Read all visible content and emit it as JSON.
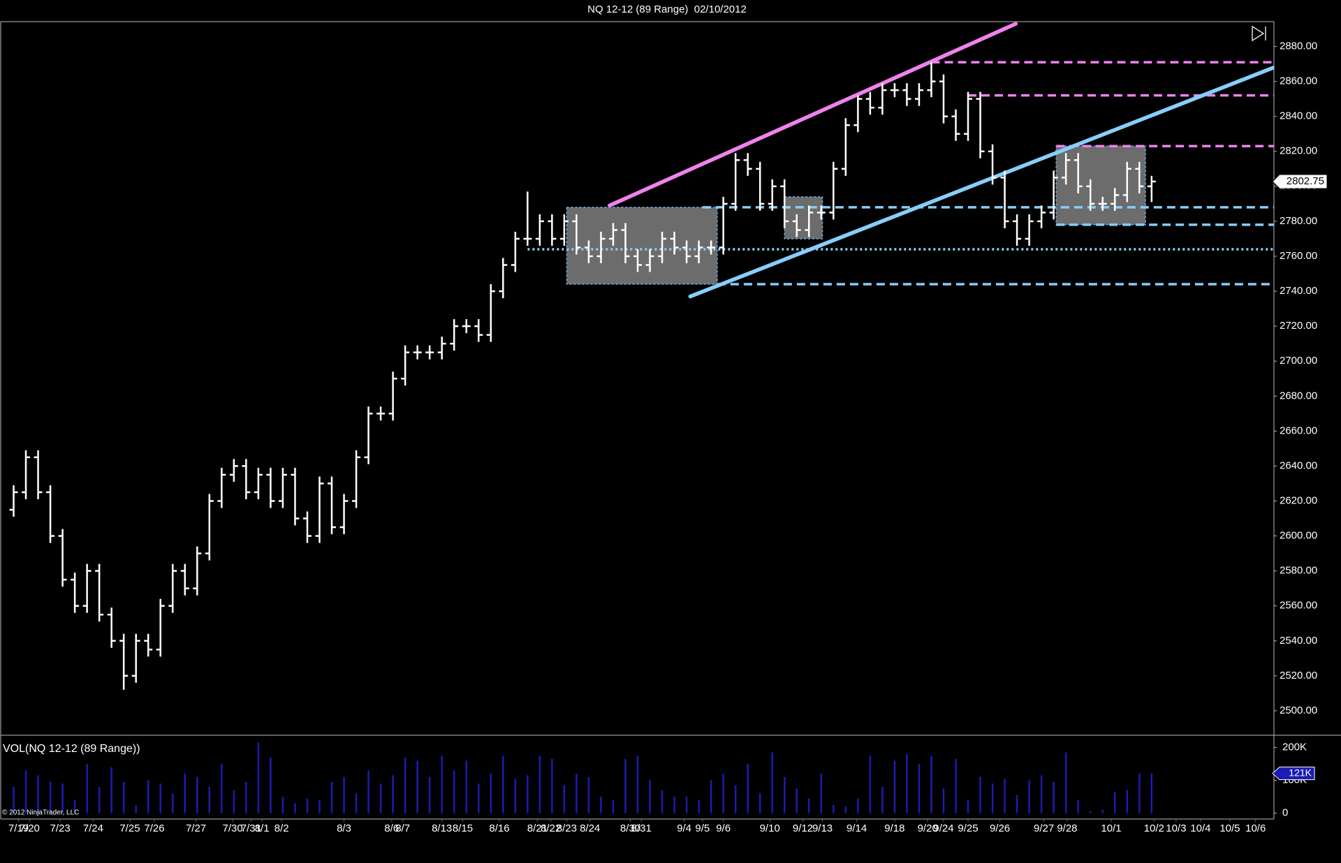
{
  "chart_data": {
    "type": "ohlc",
    "title": "NQ 12-12 (89 Range)  02/10/2012",
    "color": "#ffffff",
    "xlim": [
      -1,
      103
    ],
    "xticks": [
      {
        "value": 0.4,
        "label": "7/19"
      },
      {
        "value": 1.3,
        "label": "7/20"
      },
      {
        "value": 3.8,
        "label": "7/23"
      },
      {
        "value": 6.5,
        "label": "7/24"
      },
      {
        "value": 9.5,
        "label": "7/25"
      },
      {
        "value": 11.5,
        "label": "7/26"
      },
      {
        "value": 14.9,
        "label": "7/27"
      },
      {
        "value": 17.9,
        "label": "7/30"
      },
      {
        "value": 19.4,
        "label": "7/31"
      },
      {
        "value": 20.3,
        "label": "8/1"
      },
      {
        "value": 21.9,
        "label": "8/2"
      },
      {
        "value": 27,
        "label": "8/3"
      },
      {
        "value": 30.9,
        "label": "8/6"
      },
      {
        "value": 31.8,
        "label": "8/7"
      },
      {
        "value": 35,
        "label": "8/13"
      },
      {
        "value": 36.7,
        "label": "8/15"
      },
      {
        "value": 39.7,
        "label": "8/16"
      },
      {
        "value": 42.8,
        "label": "8/21"
      },
      {
        "value": 43.9,
        "label": "8/22"
      },
      {
        "value": 45.2,
        "label": "8/23"
      },
      {
        "value": 47.1,
        "label": "8/24"
      },
      {
        "value": 50.4,
        "label": "8/30"
      },
      {
        "value": 51.3,
        "label": "8/31"
      },
      {
        "value": 54.8,
        "label": "9/4"
      },
      {
        "value": 56.3,
        "label": "9/5"
      },
      {
        "value": 58,
        "label": "9/6"
      },
      {
        "value": 61.8,
        "label": "9/10"
      },
      {
        "value": 64.5,
        "label": "9/12"
      },
      {
        "value": 66.1,
        "label": "9/13"
      },
      {
        "value": 68.9,
        "label": "9/14"
      },
      {
        "value": 72,
        "label": "9/18"
      },
      {
        "value": 74.7,
        "label": "9/20"
      },
      {
        "value": 76,
        "label": "9/24"
      },
      {
        "value": 78,
        "label": "9/25"
      },
      {
        "value": 80.6,
        "label": "9/26"
      },
      {
        "value": 84.2,
        "label": "9/27"
      },
      {
        "value": 86.1,
        "label": "9/28"
      },
      {
        "value": 89.7,
        "label": "10/1"
      },
      {
        "value": 93.2,
        "label": "10/2"
      },
      {
        "value": 95,
        "label": "10/3"
      },
      {
        "value": 97,
        "label": "10/4"
      },
      {
        "value": 99.4,
        "label": "10/5"
      },
      {
        "value": 101.5,
        "label": "10/6"
      }
    ],
    "ylim": [
      2486.8,
      2894.2
    ],
    "yticks": [
      {
        "value": 2500,
        "label": "2500.00"
      },
      {
        "value": 2520,
        "label": "2520.00"
      },
      {
        "value": 2540,
        "label": "2540.00"
      },
      {
        "value": 2560,
        "label": "2560.00"
      },
      {
        "value": 2580,
        "label": "2580.00"
      },
      {
        "value": 2600,
        "label": "2600.00"
      },
      {
        "value": 2620,
        "label": "2620.00"
      },
      {
        "value": 2640,
        "label": "2640.00"
      },
      {
        "value": 2660,
        "label": "2660.00"
      },
      {
        "value": 2680,
        "label": "2680.00"
      },
      {
        "value": 2700,
        "label": "2700.00"
      },
      {
        "value": 2720,
        "label": "2720.00"
      },
      {
        "value": 2740,
        "label": "2740.00"
      },
      {
        "value": 2760,
        "label": "2760.00"
      },
      {
        "value": 2780,
        "label": "2780.00"
      },
      {
        "value": 2800,
        "label": "2800.00"
      },
      {
        "value": 2820,
        "label": "2820.00"
      },
      {
        "value": 2840,
        "label": "2840.00"
      },
      {
        "value": 2860,
        "label": "2860.00"
      },
      {
        "value": 2880,
        "label": "2880.00"
      }
    ],
    "open": [
      2615,
      2625,
      2645,
      2625,
      2600,
      2575,
      2560,
      2580,
      2555,
      2540,
      2520,
      2540,
      2535,
      2560,
      2580,
      2570,
      2590,
      2620,
      2635,
      2640,
      2625,
      2635,
      2620,
      2635,
      2610,
      2600,
      2630,
      2605,
      2620,
      2645,
      2670,
      2670,
      2690,
      2705,
      2705,
      2705,
      2710,
      2720,
      2720,
      2715,
      2740,
      2755,
      2770,
      2770,
      2780,
      2770,
      2780,
      2765,
      2760,
      2770,
      2775,
      2760,
      2755,
      2760,
      2770,
      2765,
      2760,
      2765,
      2765,
      2790,
      2815,
      2810,
      2790,
      2800,
      2780,
      2775,
      2785,
      2785,
      2810,
      2835,
      2850,
      2845,
      2855,
      2855,
      2850,
      2855,
      2860,
      2840,
      2830,
      2850,
      2820,
      2805,
      2780,
      2770,
      2780,
      2785,
      2805,
      2815,
      2800,
      2790,
      2790,
      2795,
      2810,
      2800
    ],
    "high": [
      2629,
      2649,
      2649,
      2629,
      2604,
      2579,
      2584,
      2584,
      2559,
      2544,
      2544,
      2544,
      2564,
      2584,
      2584,
      2594,
      2624,
      2639,
      2644,
      2644,
      2639,
      2639,
      2639,
      2639,
      2614,
      2634,
      2634,
      2624,
      2649,
      2674,
      2674,
      2694,
      2709,
      2709,
      2709,
      2714,
      2724,
      2724,
      2724,
      2744,
      2759,
      2774,
      2797,
      2784,
      2784,
      2784,
      2784,
      2769,
      2774,
      2779,
      2779,
      2764,
      2764,
      2774,
      2774,
      2769,
      2769,
      2769,
      2794,
      2819,
      2819,
      2814,
      2804,
      2804,
      2784,
      2789,
      2789,
      2814,
      2839,
      2852,
      2854,
      2859,
      2859,
      2859,
      2859,
      2871,
      2864,
      2844,
      2854,
      2854,
      2824,
      2809,
      2784,
      2784,
      2789,
      2809,
      2819,
      2819,
      2804,
      2794,
      2799,
      2814,
      2814,
      2806
    ],
    "low": [
      2611,
      2621,
      2621,
      2596,
      2571,
      2556,
      2556,
      2551,
      2536,
      2512,
      2516,
      2531,
      2531,
      2556,
      2566,
      2566,
      2586,
      2616,
      2631,
      2621,
      2621,
      2616,
      2616,
      2606,
      2596,
      2596,
      2601,
      2601,
      2616,
      2641,
      2666,
      2666,
      2686,
      2701,
      2701,
      2701,
      2706,
      2716,
      2711,
      2711,
      2736,
      2751,
      2766,
      2766,
      2766,
      2766,
      2761,
      2756,
      2756,
      2766,
      2756,
      2751,
      2751,
      2756,
      2761,
      2756,
      2756,
      2761,
      2761,
      2786,
      2806,
      2786,
      2786,
      2776,
      2771,
      2771,
      2781,
      2781,
      2806,
      2831,
      2841,
      2841,
      2851,
      2846,
      2846,
      2851,
      2836,
      2826,
      2826,
      2816,
      2801,
      2776,
      2766,
      2766,
      2776,
      2781,
      2801,
      2796,
      2786,
      2786,
      2786,
      2791,
      2796,
      2791
    ],
    "close": [
      2625,
      2645,
      2625,
      2600,
      2575,
      2560,
      2580,
      2555,
      2540,
      2520,
      2540,
      2535,
      2560,
      2580,
      2570,
      2590,
      2620,
      2635,
      2640,
      2625,
      2635,
      2620,
      2635,
      2610,
      2600,
      2630,
      2605,
      2620,
      2645,
      2670,
      2670,
      2690,
      2705,
      2705,
      2705,
      2710,
      2720,
      2720,
      2715,
      2740,
      2755,
      2770,
      2770,
      2780,
      2770,
      2780,
      2765,
      2760,
      2770,
      2775,
      2760,
      2755,
      2760,
      2770,
      2765,
      2760,
      2765,
      2765,
      2790,
      2815,
      2810,
      2790,
      2800,
      2780,
      2775,
      2785,
      2785,
      2810,
      2835,
      2850,
      2845,
      2855,
      2855,
      2850,
      2855,
      2860,
      2840,
      2830,
      2850,
      2820,
      2805,
      2780,
      2770,
      2780,
      2785,
      2805,
      2815,
      2800,
      2790,
      2790,
      2795,
      2810,
      2800,
      2802.75
    ],
    "annotations": {
      "rectangles": [
        {
          "x0": 45.2,
          "x1": 57.5,
          "y0": 2744,
          "y1": 2788
        },
        {
          "x0": 63,
          "x1": 66.1,
          "y0": 2770,
          "y1": 2794
        },
        {
          "x0": 85.2,
          "x1": 92.5,
          "y0": 2778,
          "y1": 2823
        }
      ],
      "rectangle_fill": "#6c6c6c",
      "rectangle_border": "#6aaee6",
      "trendlines": [
        {
          "x0": 48.7,
          "y0": 2789,
          "x1": 81.9,
          "y1": 2893,
          "color": "#ee82ee"
        },
        {
          "x0": 55.3,
          "y0": 2737,
          "x1": 103,
          "y1": 2868,
          "color": "#87cefa"
        }
      ],
      "levels": [
        {
          "y": 2871,
          "x0": 75,
          "color": "#ee82ee",
          "style": "dashed"
        },
        {
          "y": 2852,
          "x0": 78,
          "color": "#ee82ee",
          "style": "dashed"
        },
        {
          "y": 2823,
          "x0": 85.2,
          "color": "#ee82ee",
          "style": "dashed"
        },
        {
          "y": 2788,
          "x0": 56.3,
          "color": "#87cefa",
          "style": "dashed"
        },
        {
          "y": 2778,
          "x0": 85.2,
          "color": "#87cefa",
          "style": "dashed"
        },
        {
          "y": 2764,
          "x0": 42,
          "color": "#87cefa",
          "style": "dotted"
        },
        {
          "y": 2744,
          "x0": 57.5,
          "color": "#87cefa",
          "style": "dashed"
        }
      ]
    },
    "volume": {
      "title": "VOL(NQ 12-12 (89 Range))",
      "color": "#1c1cb4",
      "ylim": [
        -18000,
        231000
      ],
      "yticks": [
        0,
        {
          "value": 100000,
          "label": "100K"
        },
        {
          "value": 200000,
          "label": "200K"
        }
      ],
      "values": [
        80000,
        130000,
        115000,
        95000,
        90000,
        40000,
        150000,
        80000,
        140000,
        95000,
        25000,
        100000,
        90000,
        60000,
        120000,
        110000,
        80000,
        150000,
        70000,
        95000,
        215000,
        170000,
        50000,
        30000,
        45000,
        40000,
        95000,
        110000,
        60000,
        130000,
        90000,
        115000,
        170000,
        160000,
        110000,
        175000,
        130000,
        160000,
        90000,
        120000,
        175000,
        105000,
        115000,
        175000,
        165000,
        85000,
        120000,
        110000,
        50000,
        40000,
        165000,
        175000,
        100000,
        70000,
        50000,
        50000,
        40000,
        100000,
        120000,
        85000,
        150000,
        60000,
        185000,
        110000,
        75000,
        45000,
        120000,
        25000,
        20000,
        45000,
        175000,
        80000,
        160000,
        180000,
        150000,
        175000,
        75000,
        165000,
        40000,
        110000,
        90000,
        105000,
        55000,
        100000,
        115000,
        95000,
        185000,
        40000,
        5000,
        10000,
        65000,
        70000,
        120000,
        121000
      ],
      "last_label": "121K"
    },
    "copyright": "© 2012 NinjaTrader, LLC"
  }
}
